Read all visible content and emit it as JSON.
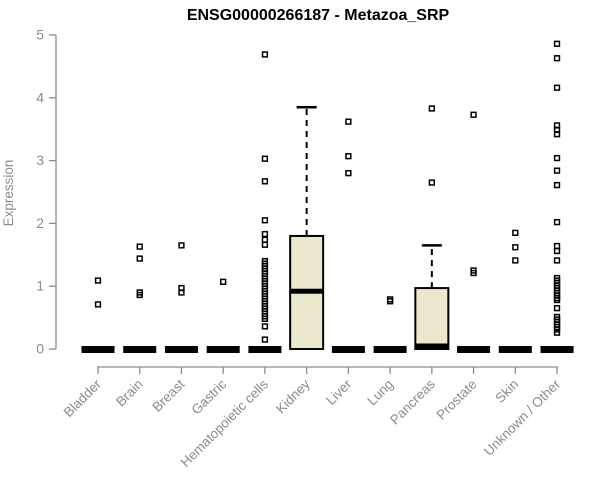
{
  "chart_data": {
    "type": "boxplot",
    "title": "ENSG00000266187 - Metazoa_SRP",
    "xlabel": "",
    "ylabel": "Expression",
    "ylim": [
      0,
      5
    ],
    "yticks": [
      0,
      1,
      2,
      3,
      4,
      5
    ],
    "grid": false,
    "legend": false,
    "marker": "open-square",
    "colors": {
      "box_fill": "#ece8cd",
      "box_border": "#000000",
      "median": "#000000",
      "outlier": "#000000",
      "axis": "#8c8c8c",
      "tick_label": "#8c8c8c",
      "title": "#000000",
      "background": "#ffffff"
    },
    "categories": [
      "Bladder",
      "Brain",
      "Breast",
      "Gastric",
      "Hematopoietic cells",
      "Kidney",
      "Liver",
      "Lung",
      "Pancreas",
      "Prostate",
      "Skin",
      "Unknown / Other"
    ],
    "series": [
      {
        "label": "Bladder",
        "box": {
          "min": 0,
          "q1": 0,
          "median": 0,
          "q3": 0,
          "max": 0
        },
        "outliers": [
          1.09,
          0.71
        ]
      },
      {
        "label": "Brain",
        "box": {
          "min": 0,
          "q1": 0,
          "median": 0,
          "q3": 0,
          "max": 0
        },
        "outliers": [
          1.63,
          1.44,
          0.9,
          0.86
        ]
      },
      {
        "label": "Breast",
        "box": {
          "min": 0,
          "q1": 0,
          "median": 0,
          "q3": 0,
          "max": 0
        },
        "outliers": [
          1.65,
          0.97,
          0.9
        ]
      },
      {
        "label": "Gastric",
        "box": {
          "min": 0,
          "q1": 0,
          "median": 0,
          "q3": 0,
          "max": 0
        },
        "outliers": [
          1.07
        ]
      },
      {
        "label": "Hematopoietic cells",
        "box": {
          "min": 0,
          "q1": 0,
          "median": 0,
          "q3": 0,
          "max": 0
        },
        "outliers": [
          4.69,
          3.03,
          2.67,
          2.05,
          1.83,
          1.74,
          1.66,
          1.4,
          1.36,
          1.32,
          1.28,
          1.24,
          1.2,
          1.16,
          1.12,
          1.08,
          1.04,
          1.0,
          0.96,
          0.92,
          0.88,
          0.84,
          0.8,
          0.76,
          0.72,
          0.68,
          0.64,
          0.6,
          0.56,
          0.52,
          0.48,
          0.36,
          0.15
        ]
      },
      {
        "label": "Kidney",
        "box": {
          "min": 0,
          "q1": 0,
          "median": 0.92,
          "q3": 1.8,
          "max": 3.85
        },
        "outliers": []
      },
      {
        "label": "Liver",
        "box": {
          "min": 0,
          "q1": 0,
          "median": 0,
          "q3": 0,
          "max": 0
        },
        "outliers": [
          3.62,
          3.07,
          2.8
        ]
      },
      {
        "label": "Lung",
        "box": {
          "min": 0,
          "q1": 0,
          "median": 0,
          "q3": 0,
          "max": 0
        },
        "outliers": [
          0.79,
          0.76
        ]
      },
      {
        "label": "Pancreas",
        "box": {
          "min": 0,
          "q1": 0,
          "median": 0,
          "q3": 0.97,
          "max": 1.65
        },
        "outliers": [
          3.83,
          2.65
        ]
      },
      {
        "label": "Prostate",
        "box": {
          "min": 0,
          "q1": 0,
          "median": 0,
          "q3": 0,
          "max": 0
        },
        "outliers": [
          3.73,
          1.25,
          1.21
        ]
      },
      {
        "label": "Skin",
        "box": {
          "min": 0,
          "q1": 0,
          "median": 0,
          "q3": 0,
          "max": 0
        },
        "outliers": [
          1.85,
          1.62,
          1.41
        ]
      },
      {
        "label": "Unknown / Other",
        "box": {
          "min": 0,
          "q1": 0,
          "median": 0,
          "q3": 0,
          "max": 0
        },
        "outliers": [
          4.86,
          4.63,
          4.16,
          3.56,
          3.49,
          3.42,
          3.04,
          2.84,
          2.61,
          2.02,
          1.64,
          1.56,
          1.41,
          1.13,
          1.09,
          1.05,
          1.01,
          0.97,
          0.93,
          0.89,
          0.85,
          0.81,
          0.78,
          0.65,
          0.51,
          0.47,
          0.43,
          0.39,
          0.35,
          0.31,
          0.26
        ]
      }
    ]
  }
}
